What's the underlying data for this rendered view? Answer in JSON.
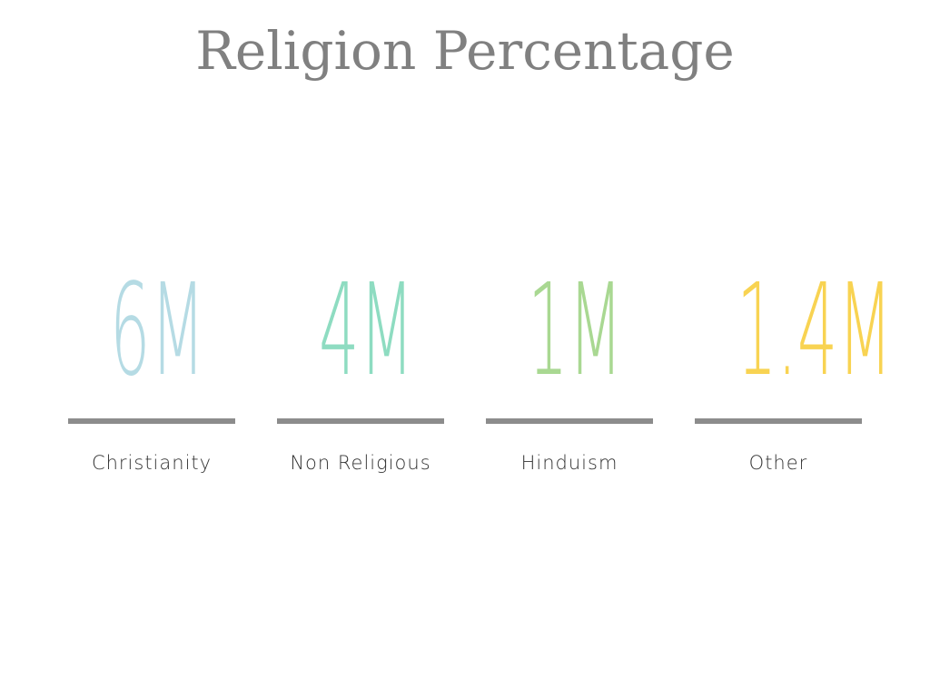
{
  "title": "Religion Percentage",
  "items": [
    {
      "value": "6M",
      "label": "Christianity",
      "color": "#b5dbe4"
    },
    {
      "value": "4M",
      "label": "Non Religious",
      "color": "#8edcc1"
    },
    {
      "value": "1M",
      "label": "Hinduism",
      "color": "#a9d892"
    },
    {
      "value": "1.4M",
      "label": "Other",
      "color": "#f8d352"
    }
  ]
}
